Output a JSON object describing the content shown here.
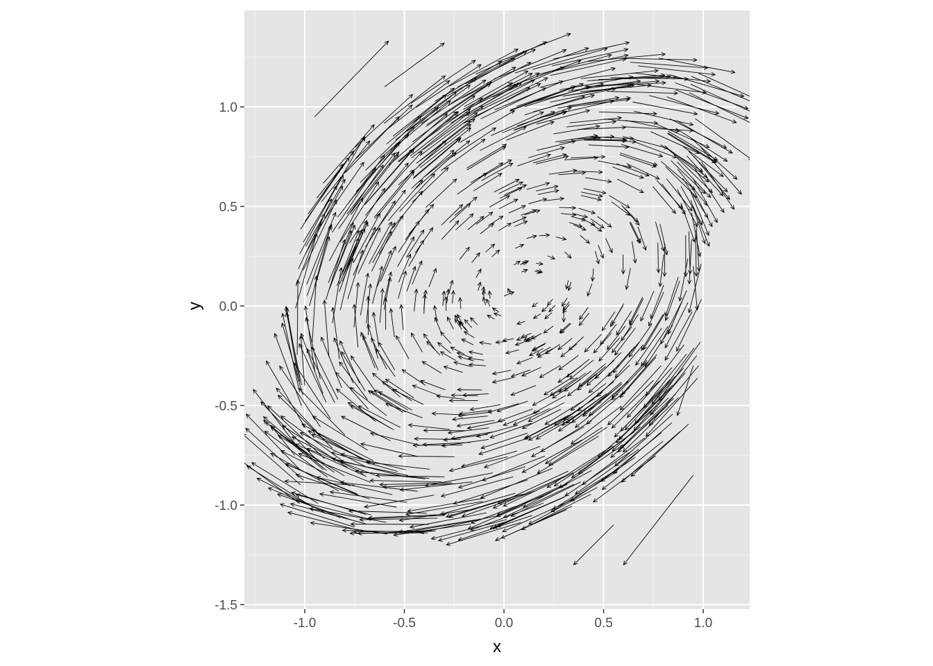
{
  "chart_data": {
    "type": "vector_field",
    "title": "",
    "xlabel": "x",
    "ylabel": "y",
    "xlim": [
      -1.25,
      1.23
    ],
    "ylim": [
      -1.52,
      1.48
    ],
    "x_ticks": [
      -1.0,
      -0.5,
      0.0,
      0.5,
      1.0
    ],
    "x_tick_labels": [
      "-1.0",
      "-0.5",
      "0.0",
      "0.5",
      "1.0"
    ],
    "y_ticks": [
      -1.5,
      -1.0,
      -0.5,
      0.0,
      0.5,
      1.0
    ],
    "y_tick_labels": [
      "-1.5",
      "-1.0",
      "-0.5",
      "0.0",
      "0.5",
      "1.0"
    ],
    "grid": true,
    "legend": "none",
    "colors": {
      "panel": "#e5e5e5",
      "grid_major": "#ffffff",
      "grid_minor": "#f2f2f2",
      "arrow": "#000000",
      "tick_text": "#4d4d4d",
      "axis_text": "#000000"
    },
    "field": {
      "description_free": true,
      "center": [
        0.1,
        0.1
      ],
      "rotation": "clockwise",
      "points": [
        {
          "x": -0.95,
          "y": 0.95,
          "dx": 0.37,
          "dy": 0.38
        },
        {
          "x": -0.6,
          "y": 1.1,
          "dx": 0.3,
          "dy": 0.22
        },
        {
          "x": -0.2,
          "y": 1.0,
          "dx": 0.32,
          "dy": 0.18
        },
        {
          "x": 0.2,
          "y": 0.95,
          "dx": 0.35,
          "dy": 0.08
        },
        {
          "x": 0.6,
          "y": 0.9,
          "dx": 0.35,
          "dy": -0.02
        },
        {
          "x": 0.9,
          "y": 0.8,
          "dx": 0.2,
          "dy": -0.15
        },
        {
          "x": 0.95,
          "y": 0.5,
          "dx": 0.08,
          "dy": -0.2
        },
        {
          "x": 0.95,
          "y": 0.2,
          "dx": 0.02,
          "dy": -0.22
        },
        {
          "x": 0.95,
          "y": -0.3,
          "dx": -0.08,
          "dy": -0.25
        },
        {
          "x": 0.95,
          "y": -0.85,
          "dx": -0.35,
          "dy": -0.45
        },
        {
          "x": 0.55,
          "y": -1.1,
          "dx": -0.2,
          "dy": -0.2
        },
        {
          "x": 0.1,
          "y": -1.0,
          "dx": -0.28,
          "dy": -0.12
        },
        {
          "x": -0.35,
          "y": -0.95,
          "dx": -0.35,
          "dy": -0.06
        },
        {
          "x": -0.75,
          "y": -0.9,
          "dx": -0.35,
          "dy": 0.02
        },
        {
          "x": -1.05,
          "y": -0.75,
          "dx": -0.12,
          "dy": 0.15
        },
        {
          "x": -1.0,
          "y": -0.4,
          "dx": -0.02,
          "dy": 0.25
        },
        {
          "x": -0.95,
          "y": 0.1,
          "dx": 0.08,
          "dy": 0.3
        },
        {
          "x": -0.9,
          "y": 0.5,
          "dx": 0.2,
          "dy": 0.35
        },
        {
          "x": 0.0,
          "y": 0.05,
          "dx": 0.05,
          "dy": 0.02
        },
        {
          "x": 0.3,
          "y": 0.0,
          "dx": 0.0,
          "dy": -0.08
        }
      ]
    }
  }
}
